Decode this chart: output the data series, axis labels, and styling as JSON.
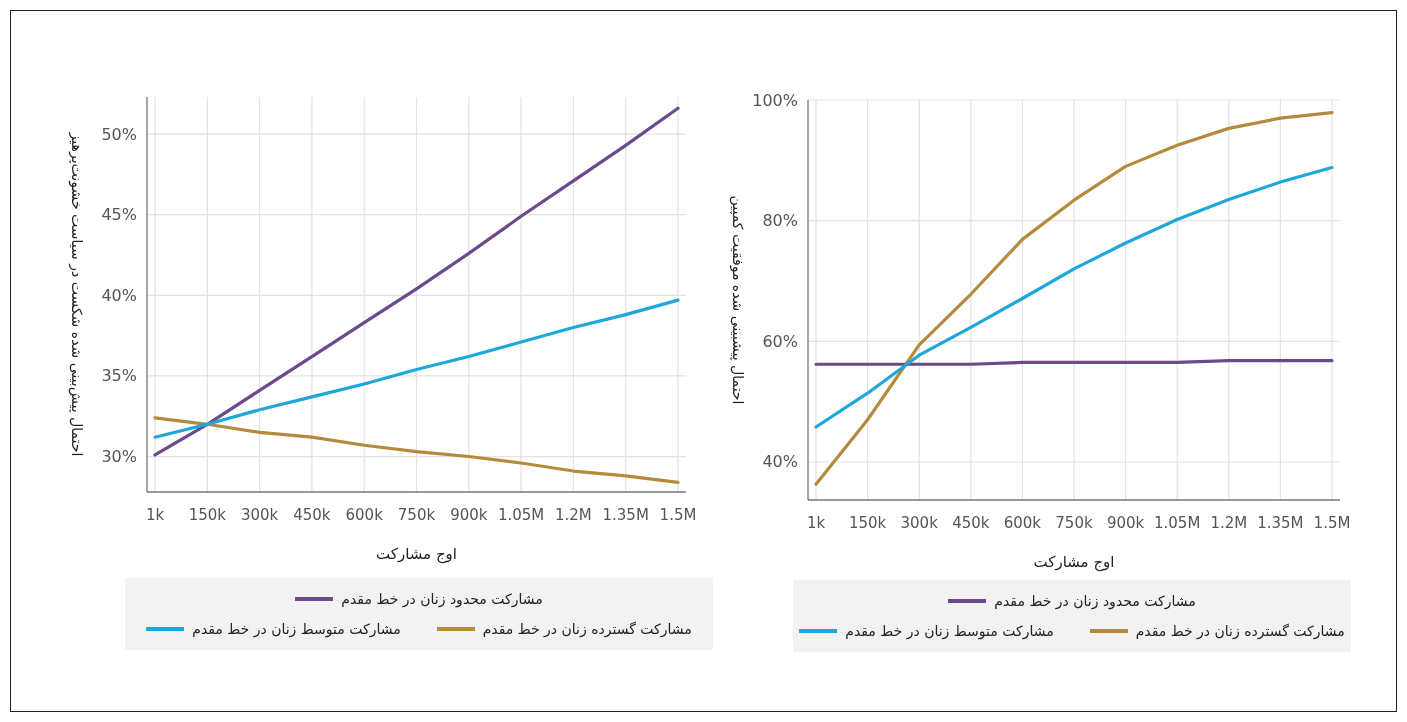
{
  "chart_data": [
    {
      "type": "line",
      "ylabel": "احتمال پیش‌بینی شده شکست در سیاست خشونت‌پرهیز",
      "xlabel": "اوج مشارکت",
      "categories": [
        "1k",
        "150k",
        "300k",
        "450k",
        "600k",
        "750k",
        "900k",
        "1.05M",
        "1.2M",
        "1.35M",
        "1.5M"
      ],
      "ylim": [
        27.8,
        52.3
      ],
      "yticks": [
        {
          "value": 30,
          "label": "30%"
        },
        {
          "value": 35,
          "label": "35%"
        },
        {
          "value": 40,
          "label": "40%"
        },
        {
          "value": 45,
          "label": "45%"
        },
        {
          "value": 50,
          "label": "50%"
        }
      ],
      "grid": true,
      "legend": "bottom",
      "series": [
        {
          "name": "مشارکت محدود زنان در خط مقدم",
          "color": "#6a4a8c",
          "values": [
            30.1,
            32.0,
            34.1,
            36.2,
            38.3,
            40.4,
            42.6,
            44.9,
            47.1,
            49.3,
            51.6
          ]
        },
        {
          "name": "مشارکت گسترده زنان در خط مقدم",
          "color": "#b58a3c",
          "values": [
            32.4,
            32.0,
            31.5,
            31.2,
            30.7,
            30.3,
            30.0,
            29.6,
            29.1,
            28.8,
            28.4
          ]
        },
        {
          "name": "مشارکت متوسط زنان در خط مقدم",
          "color": "#1ea7d8",
          "values": [
            31.2,
            32.0,
            32.9,
            33.7,
            34.5,
            35.4,
            36.2,
            37.1,
            38.0,
            38.8,
            39.7
          ]
        }
      ]
    },
    {
      "type": "line",
      "ylabel": "احتمال پیشبینی شده موفقیت کمپین",
      "xlabel": "اوج مشارکت",
      "categories": [
        "1k",
        "150k",
        "300k",
        "450k",
        "600k",
        "750k",
        "900k",
        "1.05M",
        "1.2M",
        "1.35M",
        "1.5M"
      ],
      "ylim": [
        33.7,
        100
      ],
      "yticks": [
        {
          "value": 40,
          "label": "40%"
        },
        {
          "value": 60,
          "label": "60%"
        },
        {
          "value": 80,
          "label": "80%"
        },
        {
          "value": 100,
          "label": "100%"
        }
      ],
      "grid": true,
      "legend": "bottom",
      "series": [
        {
          "name": "مشارکت محدود زنان در خط مقدم",
          "color": "#6a4a8c",
          "values": [
            56.2,
            56.2,
            56.2,
            56.2,
            56.5,
            56.5,
            56.5,
            56.5,
            56.8,
            56.8,
            56.8
          ]
        },
        {
          "name": "مشارکت گسترده زنان در خط مقدم",
          "color": "#b58a3c",
          "values": [
            36.3,
            47.0,
            59.4,
            67.8,
            76.9,
            83.4,
            89.0,
            92.5,
            95.3,
            97.0,
            97.9
          ]
        },
        {
          "name": "مشارکت متوسط زنان در خط مقدم",
          "color": "#1ea7d8",
          "values": [
            45.8,
            51.4,
            57.7,
            62.3,
            67.1,
            72.0,
            76.3,
            80.2,
            83.5,
            86.4,
            88.8
          ]
        }
      ]
    }
  ]
}
